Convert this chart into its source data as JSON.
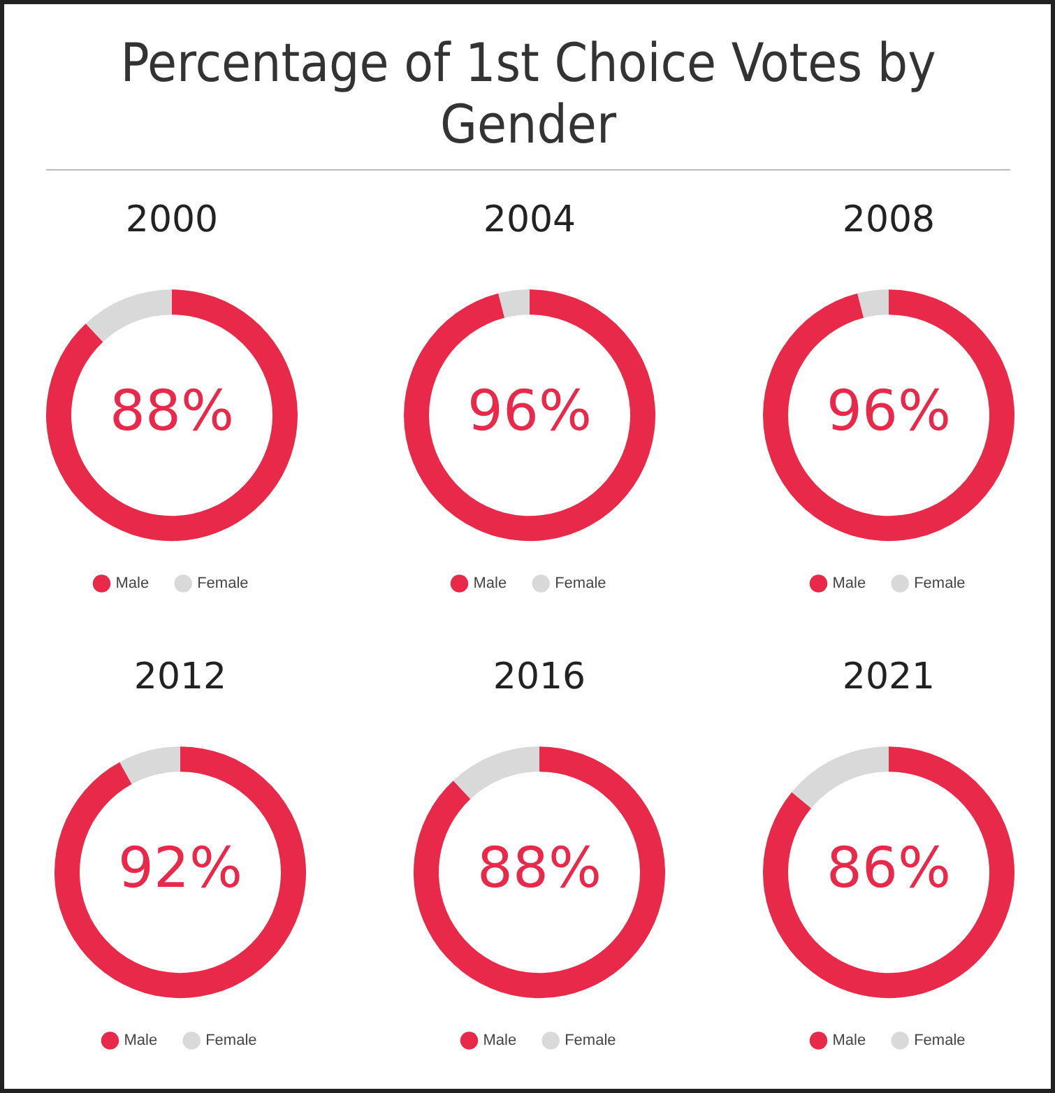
{
  "chart_data": [
    {
      "type": "other",
      "title": "Percentage of 1st Choice Votes by Gender"
    },
    {
      "type": "donut",
      "title": "2000",
      "categories": [
        "Male",
        "Female"
      ],
      "values": [
        88,
        12
      ],
      "colors": [
        "#e8294a",
        "#d9d9d9"
      ],
      "legend": "bottom",
      "annotations": [
        "88%"
      ]
    },
    {
      "type": "donut",
      "title": "2004",
      "categories": [
        "Male",
        "Female"
      ],
      "values": [
        96,
        4
      ],
      "colors": [
        "#e8294a",
        "#d9d9d9"
      ],
      "legend": "bottom",
      "annotations": [
        "96%"
      ]
    },
    {
      "type": "donut",
      "title": "2008",
      "categories": [
        "Male",
        "Female"
      ],
      "values": [
        96,
        4
      ],
      "colors": [
        "#e8294a",
        "#d9d9d9"
      ],
      "legend": "bottom",
      "annotations": [
        "96%"
      ]
    },
    {
      "type": "donut",
      "title": "2012",
      "categories": [
        "Male",
        "Female"
      ],
      "values": [
        92,
        8
      ],
      "colors": [
        "#e8294a",
        "#d9d9d9"
      ],
      "legend": "bottom",
      "annotations": [
        "92%"
      ]
    },
    {
      "type": "donut",
      "title": "2016",
      "categories": [
        "Male",
        "Female"
      ],
      "values": [
        88,
        12
      ],
      "colors": [
        "#e8294a",
        "#d9d9d9"
      ],
      "legend": "bottom",
      "annotations": [
        "88%"
      ]
    },
    {
      "type": "donut",
      "title": "2021",
      "categories": [
        "Male",
        "Female"
      ],
      "values": [
        86,
        14
      ],
      "colors": [
        "#e8294a",
        "#d9d9d9"
      ],
      "legend": "bottom",
      "annotations": [
        "86%"
      ]
    }
  ]
}
